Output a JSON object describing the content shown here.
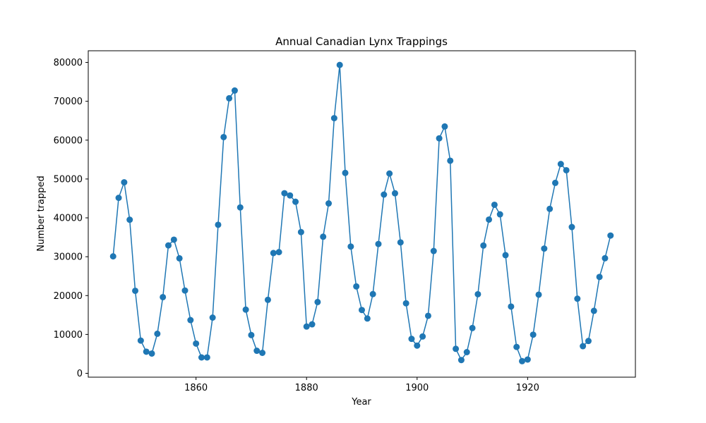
{
  "chart_data": {
    "type": "line",
    "title": "Annual Canadian Lynx Trappings",
    "xlabel": "Year",
    "ylabel": "Number trapped",
    "xlim": [
      1840.5,
      1939.5
    ],
    "ylim": [
      -1000,
      83000
    ],
    "xticks": [
      1860,
      1880,
      1900,
      1920
    ],
    "yticks": [
      0,
      10000,
      20000,
      30000,
      40000,
      50000,
      60000,
      70000,
      80000
    ],
    "grid": false,
    "legend": "none",
    "colors": {
      "series": "#1f77b4"
    },
    "series": [
      {
        "x": [
          1845,
          1846,
          1847,
          1848,
          1849,
          1850,
          1851,
          1852,
          1853,
          1854,
          1855,
          1856,
          1857,
          1858,
          1859,
          1860,
          1861,
          1862,
          1863,
          1864,
          1865,
          1866,
          1867,
          1868,
          1869,
          1870,
          1871,
          1872,
          1873,
          1874,
          1875,
          1876,
          1877,
          1878,
          1879,
          1880,
          1881,
          1882,
          1883,
          1884,
          1885,
          1886,
          1887,
          1888,
          1889,
          1890,
          1891,
          1892,
          1893,
          1894,
          1895,
          1896,
          1897,
          1898,
          1899,
          1900,
          1901,
          1902,
          1903,
          1904,
          1905,
          1906,
          1907,
          1908,
          1909,
          1910,
          1911,
          1912,
          1913,
          1914,
          1915,
          1916,
          1917,
          1918,
          1919,
          1920,
          1921,
          1922,
          1923,
          1924,
          1925,
          1926,
          1927,
          1928,
          1929,
          1930,
          1931,
          1932,
          1933,
          1934,
          1935
        ],
        "values": [
          30090,
          45150,
          49150,
          39520,
          21230,
          8420,
          5560,
          5080,
          10170,
          19600,
          32910,
          34380,
          29590,
          21300,
          13690,
          7650,
          4080,
          4090,
          14330,
          38220,
          60780,
          70770,
          72770,
          42680,
          16390,
          9830,
          5800,
          5260,
          18910,
          30950,
          31180,
          46340,
          45770,
          44150,
          36330,
          12030,
          12600,
          18340,
          35140,
          43720,
          65660,
          79350,
          51560,
          32610,
          22350,
          16290,
          14100,
          20380,
          33270,
          45990,
          51410,
          46320,
          33680,
          18010,
          8860,
          7130,
          9470,
          14790,
          31470,
          60460,
          63510,
          54700,
          6300,
          3410,
          5440,
          11650,
          20350,
          32880,
          39550,
          43360,
          40900,
          30400,
          17170,
          6780,
          3120,
          3540,
          9940,
          20230,
          32090,
          42310,
          49000,
          53850,
          52250,
          37640,
          19200,
          6980,
          8310,
          16070,
          24790,
          29610,
          35450
        ]
      }
    ]
  }
}
